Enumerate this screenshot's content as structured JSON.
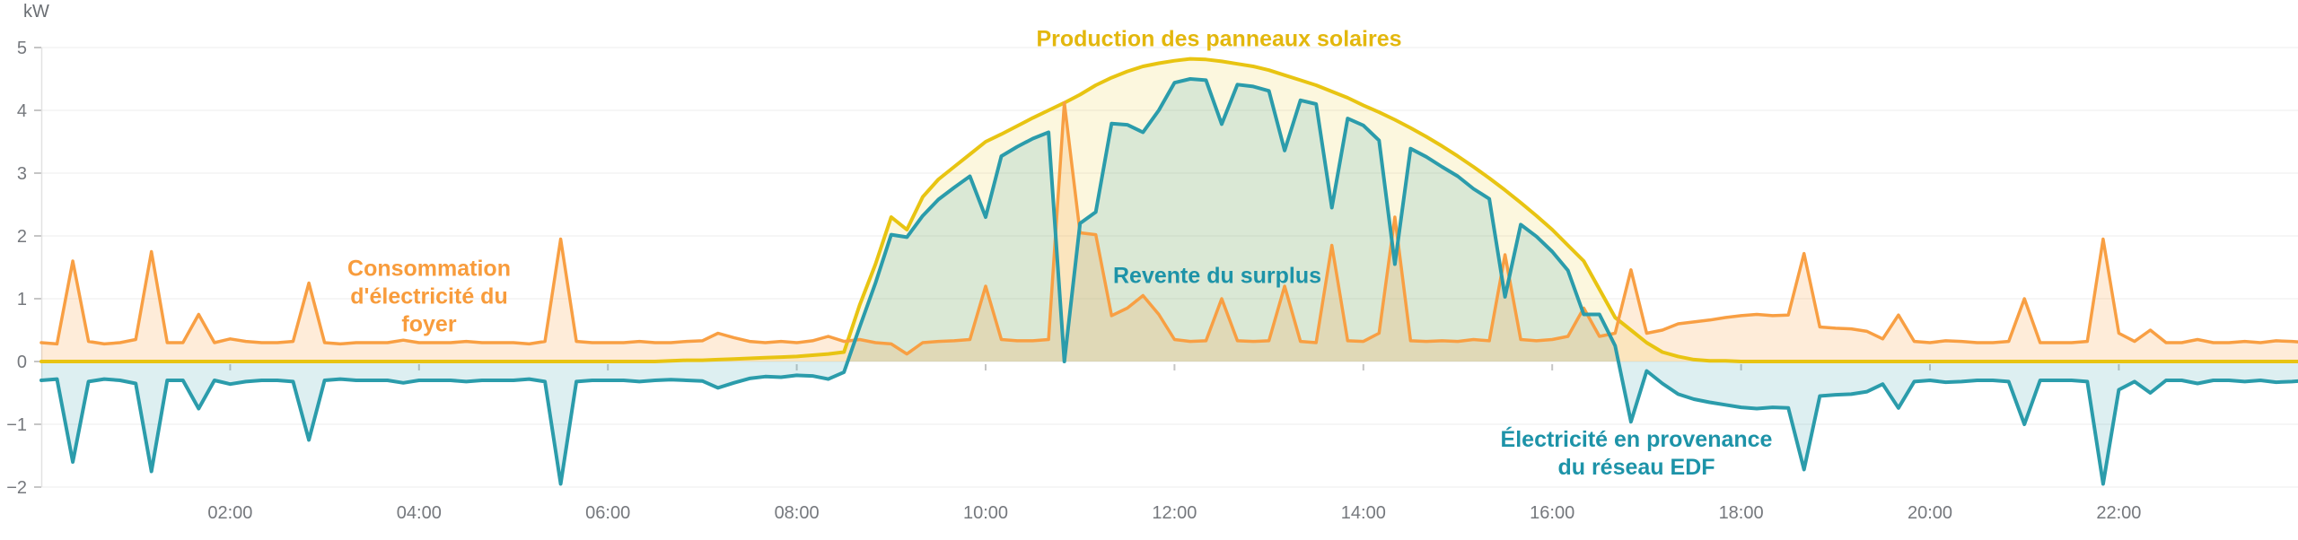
{
  "chart_data": {
    "type": "area",
    "title": "",
    "ylabel": "kW",
    "xlabel": "",
    "ylim": [
      -2,
      5
    ],
    "grid": true,
    "legend_position": "inline-annotations",
    "x_start": "00:00",
    "x_end": "24:00",
    "x_step_minutes": 10,
    "y_ticks": [
      "5",
      "4",
      "3",
      "2",
      "1",
      "0",
      "−1",
      "−2"
    ],
    "x_tick_hours": [
      2,
      4,
      6,
      8,
      10,
      12,
      14,
      16,
      18,
      20,
      22
    ],
    "x_tick_labels": [
      "02:00",
      "04:00",
      "06:00",
      "08:00",
      "10:00",
      "12:00",
      "14:00",
      "16:00",
      "18:00",
      "20:00",
      "22:00"
    ],
    "series": [
      {
        "id": "production",
        "name": "Production des panneaux solaires",
        "color": "#e8c412",
        "fill": "rgba(232,196,18,0.14)",
        "line_width": 4,
        "values": [
          0,
          0,
          0,
          0,
          0,
          0,
          0,
          0,
          0,
          0,
          0,
          0,
          0,
          0,
          0,
          0,
          0,
          0,
          0,
          0,
          0,
          0,
          0,
          0,
          0,
          0,
          0,
          0,
          0,
          0,
          0,
          0,
          0,
          0,
          0,
          0,
          0,
          0,
          0,
          0,
          0.01,
          0.02,
          0.02,
          0.03,
          0.04,
          0.05,
          0.06,
          0.07,
          0.08,
          0.1,
          0.12,
          0.15,
          0.9,
          1.55,
          2.3,
          2.1,
          2.62,
          2.9,
          3.1,
          3.3,
          3.5,
          3.62,
          3.75,
          3.88,
          4.0,
          4.12,
          4.25,
          4.4,
          4.52,
          4.62,
          4.7,
          4.75,
          4.79,
          4.82,
          4.81,
          4.78,
          4.74,
          4.7,
          4.64,
          4.56,
          4.48,
          4.4,
          4.3,
          4.2,
          4.08,
          3.97,
          3.85,
          3.72,
          3.58,
          3.43,
          3.27,
          3.1,
          2.92,
          2.73,
          2.53,
          2.32,
          2.1,
          1.85,
          1.6,
          1.15,
          0.7,
          0.5,
          0.3,
          0.15,
          0.08,
          0.03,
          0.01,
          0.01,
          0,
          0,
          0,
          0,
          0,
          0,
          0,
          0,
          0,
          0,
          0,
          0,
          0,
          0,
          0,
          0,
          0,
          0,
          0,
          0,
          0,
          0,
          0,
          0,
          0,
          0,
          0,
          0,
          0,
          0,
          0,
          0,
          0,
          0,
          0,
          0,
          0
        ]
      },
      {
        "id": "consumption",
        "name": "Consommation d'électricité du foyer",
        "color": "#f89f43",
        "fill": "rgba(248,159,67,0.20)",
        "line_width": 3.5,
        "values": [
          0.3,
          0.28,
          1.6,
          0.32,
          0.28,
          0.3,
          0.35,
          1.75,
          0.3,
          0.3,
          0.75,
          0.3,
          0.36,
          0.32,
          0.3,
          0.3,
          0.32,
          1.25,
          0.3,
          0.28,
          0.3,
          0.3,
          0.3,
          0.34,
          0.3,
          0.3,
          0.3,
          0.32,
          0.3,
          0.3,
          0.3,
          0.28,
          0.32,
          1.95,
          0.32,
          0.3,
          0.3,
          0.3,
          0.32,
          0.3,
          0.3,
          0.32,
          0.33,
          0.45,
          0.38,
          0.32,
          0.3,
          0.32,
          0.3,
          0.33,
          0.4,
          0.32,
          0.35,
          0.3,
          0.28,
          0.12,
          0.3,
          0.32,
          0.33,
          0.35,
          1.2,
          0.35,
          0.33,
          0.33,
          0.35,
          4.12,
          2.05,
          2.02,
          0.73,
          0.85,
          1.05,
          0.75,
          0.35,
          0.32,
          0.33,
          1.0,
          0.33,
          0.32,
          0.33,
          1.2,
          0.32,
          0.3,
          1.85,
          0.33,
          0.32,
          0.45,
          2.3,
          0.33,
          0.32,
          0.33,
          0.32,
          0.35,
          0.33,
          1.7,
          0.35,
          0.33,
          0.35,
          0.4,
          0.85,
          0.4,
          0.45,
          1.46,
          0.45,
          0.5,
          0.6,
          0.63,
          0.66,
          0.7,
          0.73,
          0.75,
          0.73,
          0.74,
          1.72,
          0.55,
          0.53,
          0.52,
          0.48,
          0.36,
          0.74,
          0.32,
          0.3,
          0.33,
          0.32,
          0.3,
          0.3,
          0.32,
          1.0,
          0.3,
          0.3,
          0.3,
          0.32,
          1.95,
          0.45,
          0.32,
          0.5,
          0.3,
          0.3,
          0.35,
          0.3,
          0.3,
          0.32,
          0.3,
          0.33,
          0.32,
          0.3
        ]
      },
      {
        "id": "net",
        "name": "Revente du surplus (+) / Électricité en provenance du réseau EDF (−)",
        "derived_from": "production − consumption",
        "color": "#2b9cab",
        "fill": "rgba(43,156,171,0.16)",
        "line_width": 4,
        "values": [
          -0.3,
          -0.28,
          -1.6,
          -0.32,
          -0.28,
          -0.3,
          -0.35,
          -1.75,
          -0.3,
          -0.3,
          -0.75,
          -0.3,
          -0.36,
          -0.32,
          -0.3,
          -0.3,
          -0.32,
          -1.25,
          -0.3,
          -0.28,
          -0.3,
          -0.3,
          -0.3,
          -0.34,
          -0.3,
          -0.3,
          -0.3,
          -0.32,
          -0.3,
          -0.3,
          -0.3,
          -0.28,
          -0.32,
          -1.95,
          -0.32,
          -0.3,
          -0.3,
          -0.3,
          -0.32,
          -0.3,
          -0.29,
          -0.3,
          -0.31,
          -0.42,
          -0.34,
          -0.27,
          -0.24,
          -0.25,
          -0.22,
          -0.23,
          -0.28,
          -0.17,
          0.55,
          1.25,
          2.02,
          1.98,
          2.32,
          2.58,
          2.77,
          2.95,
          2.3,
          3.27,
          3.42,
          3.55,
          3.65,
          0.0,
          2.2,
          2.38,
          3.79,
          3.77,
          3.65,
          4.0,
          4.44,
          4.5,
          4.48,
          3.78,
          4.41,
          4.38,
          4.31,
          3.36,
          4.16,
          4.1,
          2.45,
          3.87,
          3.76,
          3.52,
          1.55,
          3.39,
          3.26,
          3.1,
          2.95,
          2.75,
          2.59,
          1.03,
          2.18,
          1.99,
          1.75,
          1.45,
          0.75,
          0.75,
          0.25,
          -0.96,
          -0.15,
          -0.35,
          -0.52,
          -0.6,
          -0.65,
          -0.69,
          -0.73,
          -0.75,
          -0.73,
          -0.74,
          -1.72,
          -0.55,
          -0.53,
          -0.52,
          -0.48,
          -0.36,
          -0.74,
          -0.32,
          -0.3,
          -0.33,
          -0.32,
          -0.3,
          -0.3,
          -0.32,
          -1.0,
          -0.3,
          -0.3,
          -0.3,
          -0.32,
          -1.95,
          -0.45,
          -0.32,
          -0.5,
          -0.3,
          -0.3,
          -0.35,
          -0.3,
          -0.3,
          -0.32,
          -0.3,
          -0.33,
          -0.32,
          -0.3
        ]
      }
    ],
    "annotations": [
      {
        "text": "Production des panneaux solaires",
        "color": "#e3b70d",
        "anchor": {
          "hour": 12.5,
          "kw": 5.1
        }
      },
      {
        "text": "Revente du surplus",
        "color": "#1d93a8",
        "anchor": {
          "hour": 12.5,
          "kw": 1.35
        }
      },
      {
        "text": "Consommation\nd'électricité du\nfoyer",
        "color": "#f89c3c",
        "anchor": {
          "hour": 4.1,
          "kw": 1.0
        }
      },
      {
        "text": "Électricité en provenance\ndu réseau EDF",
        "color": "#1d93a8",
        "anchor": {
          "hour": 16.9,
          "kw": -1.45
        }
      }
    ],
    "axis_style": {
      "tick_label_color": "#75787d",
      "gridline_color": "#ececec",
      "axis_line_color": "#e2e2e2",
      "tick_mark_color": "#c5c5c5"
    }
  }
}
